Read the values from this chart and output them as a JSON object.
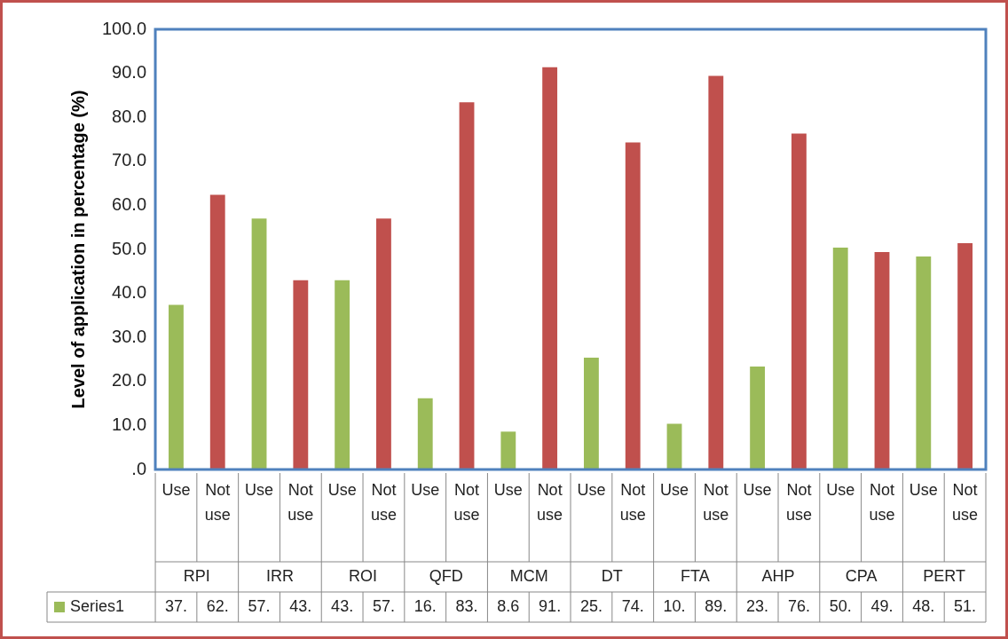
{
  "chart_data": {
    "type": "bar",
    "ylabel": "Level of application in percentage (%)",
    "categories": [
      "Use",
      "Not use",
      "Use",
      "Not use",
      "Use",
      "Not use",
      "Use",
      "Not use",
      "Use",
      "Not use",
      "Use",
      "Not use",
      "Use",
      "Not use",
      "Use",
      "Not use",
      "Use",
      "Not use",
      "Use",
      "Not use"
    ],
    "annotations": [
      "RPI",
      "IRR",
      "ROI",
      "QFD",
      "MCM",
      "DT",
      "FTA",
      "AHP",
      "CPA",
      "PERT"
    ],
    "series": [
      {
        "name": "Series1",
        "color": "#9bbb59",
        "colors": [
          "#9bbb59",
          "#c0504d",
          "#9bbb59",
          "#c0504d",
          "#9bbb59",
          "#c0504d",
          "#9bbb59",
          "#c0504d",
          "#9bbb59",
          "#c0504d",
          "#9bbb59",
          "#c0504d",
          "#9bbb59",
          "#c0504d",
          "#9bbb59",
          "#c0504d",
          "#9bbb59",
          "#c0504d",
          "#9bbb59",
          "#c0504d"
        ],
        "values": [
          37.4,
          62.4,
          57.0,
          43.0,
          43.0,
          57.0,
          16.2,
          83.4,
          8.6,
          91.4,
          25.4,
          74.3,
          10.4,
          89.4,
          23.4,
          76.3,
          50.4,
          49.4,
          48.4,
          51.4
        ],
        "value_labels": [
          "37.",
          "62.",
          "57.",
          "43.",
          "43.",
          "57.",
          "16.",
          "83.",
          "8.6",
          "91.",
          "25.",
          "74.",
          "10.",
          "89.",
          "23.",
          "76.",
          "50.",
          "49.",
          "48.",
          "51."
        ]
      }
    ],
    "ylim": [
      0,
      100
    ],
    "yticks": [
      {
        "value": 0,
        "label": ".0"
      },
      {
        "value": 10,
        "label": "10.0"
      },
      {
        "value": 20,
        "label": "20.0"
      },
      {
        "value": 30,
        "label": "30.0"
      },
      {
        "value": 40,
        "label": "40.0"
      },
      {
        "value": 50,
        "label": "50.0"
      },
      {
        "value": 60,
        "label": "60.0"
      },
      {
        "value": 70,
        "label": "70.0"
      },
      {
        "value": 80,
        "label": "80.0"
      },
      {
        "value": 90,
        "label": "90.0"
      },
      {
        "value": 100,
        "label": "100.0"
      }
    ],
    "grid": false,
    "legend": "bottom"
  }
}
